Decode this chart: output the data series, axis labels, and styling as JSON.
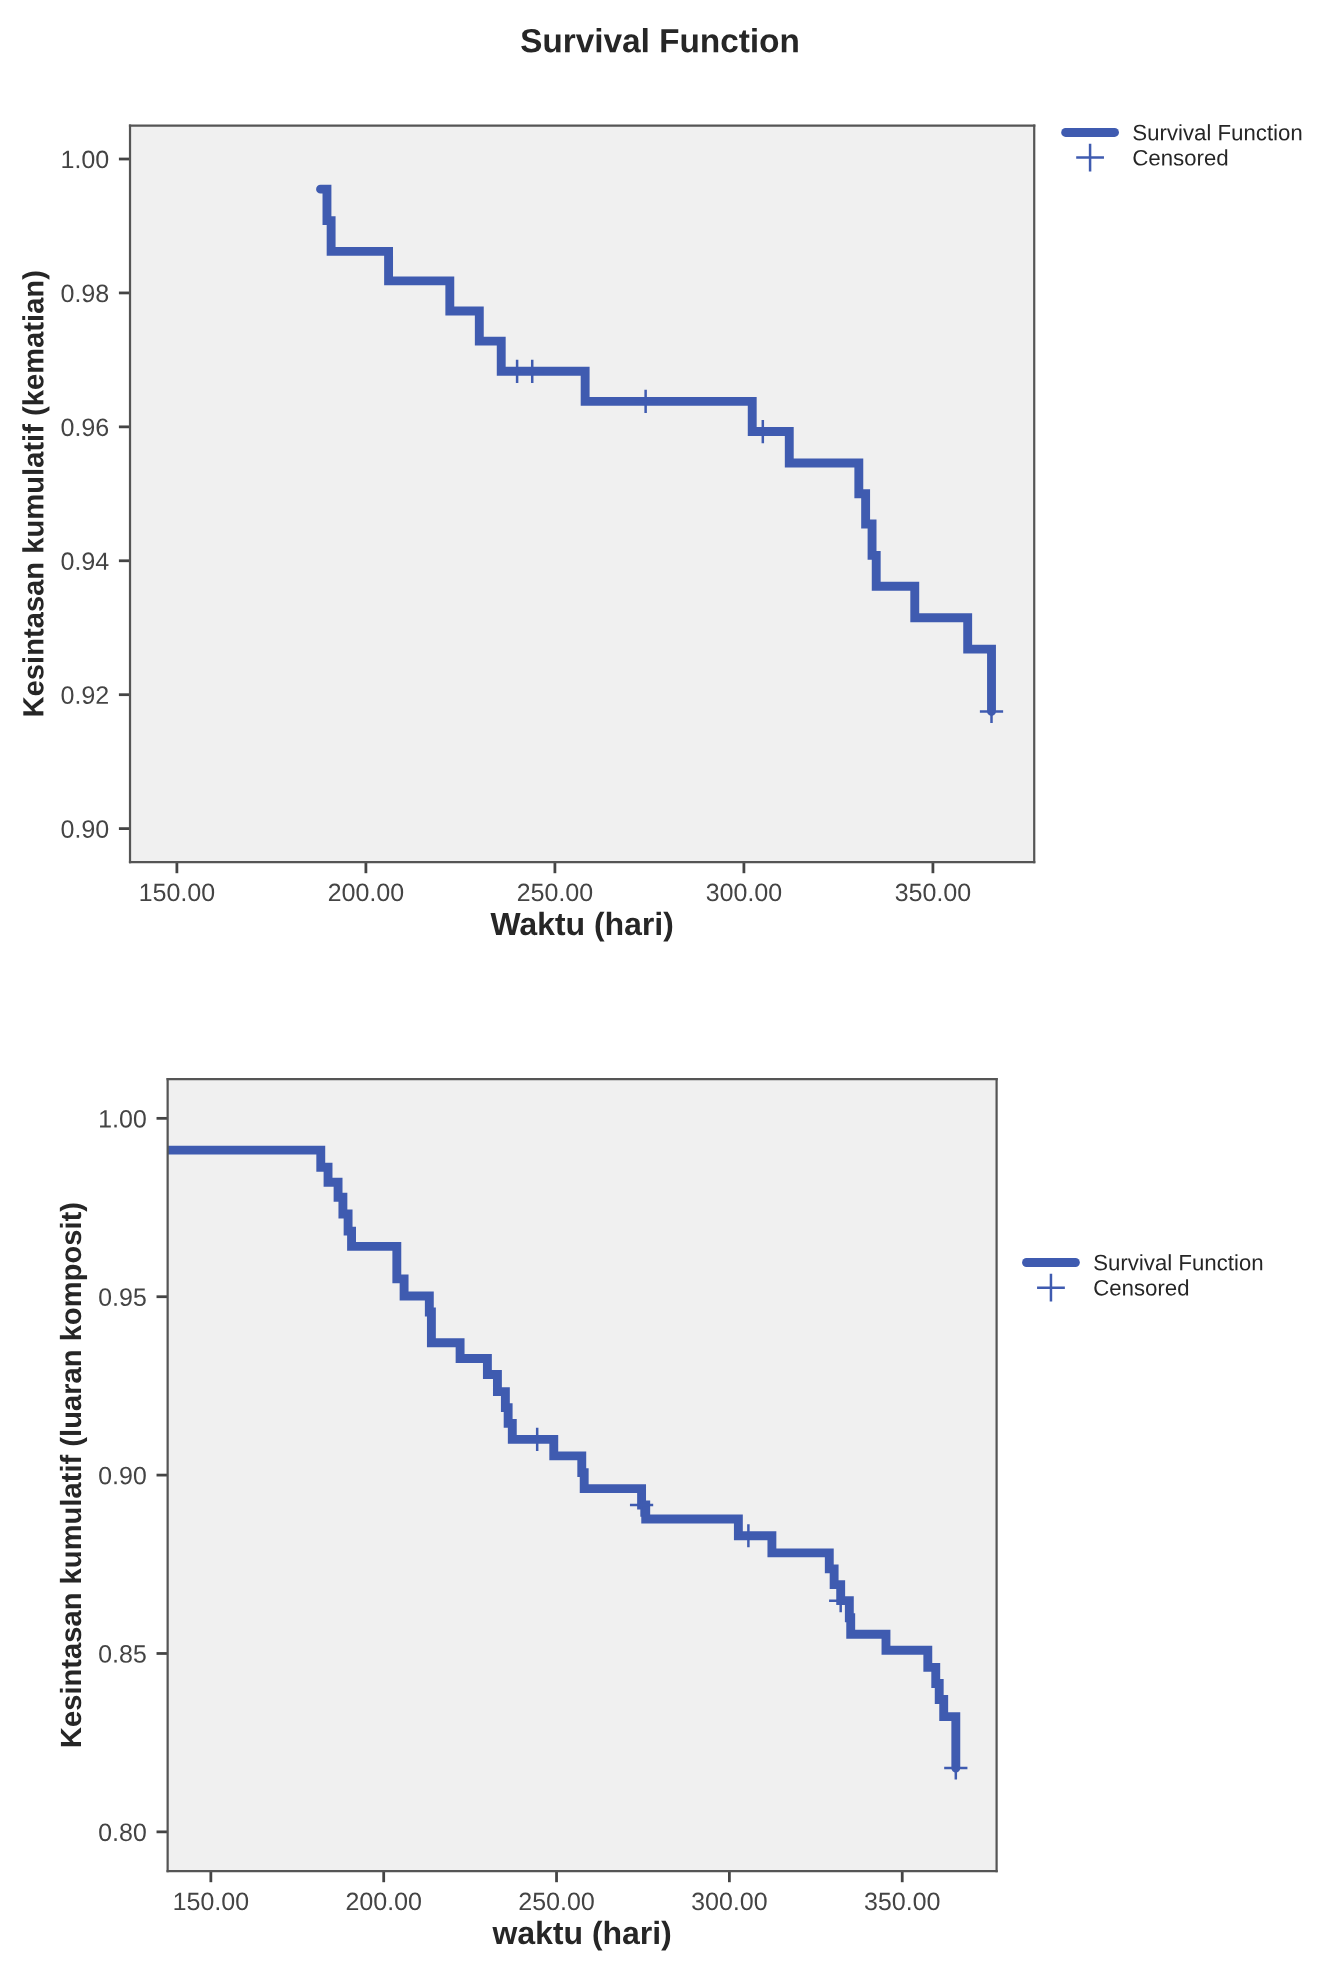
{
  "chart_data": [
    {
      "type": "step",
      "title": "Survival Function",
      "xlabel": "Waktu (hari)",
      "ylabel": "Kesintasan kumulatif (kematian)",
      "xlim": [
        137.6,
        376.8
      ],
      "ylim": [
        0.895,
        1.005
      ],
      "xticks": [
        {
          "value": 150,
          "label": "150.00"
        },
        {
          "value": 200,
          "label": "200.00"
        },
        {
          "value": 250,
          "label": "250.00"
        },
        {
          "value": 300,
          "label": "300.00"
        },
        {
          "value": 350,
          "label": "350.00"
        }
      ],
      "yticks": [
        {
          "value": 0.9,
          "label": "0.90"
        },
        {
          "value": 0.92,
          "label": "0.92"
        },
        {
          "value": 0.94,
          "label": "0.94"
        },
        {
          "value": 0.96,
          "label": "0.96"
        },
        {
          "value": 0.98,
          "label": "0.98"
        },
        {
          "value": 1.0,
          "label": "1.00"
        }
      ],
      "grid": false,
      "legend": "top right",
      "series": [
        {
          "name": "Survival Function",
          "color": "#3f5bb0",
          "x": [
            188,
            189.7,
            190.8,
            206,
            222.2,
            230,
            235.8,
            258,
            302.2,
            312,
            330.4,
            332.2,
            333.9,
            335,
            345.2,
            359.2,
            365.5
          ],
          "values": [
            0.9955,
            0.9908,
            0.9862,
            0.9818,
            0.9773,
            0.9728,
            0.9683,
            0.9638,
            0.9593,
            0.9546,
            0.95,
            0.9455,
            0.9408,
            0.9362,
            0.9315,
            0.9268,
            0.9175
          ]
        },
        {
          "name": "Censored",
          "type": "scatter",
          "marker": "cross",
          "color": "#3f5bb0",
          "x": [
            240,
            244,
            274,
            305,
            365.5
          ],
          "values": [
            0.9683,
            0.9683,
            0.9638,
            0.9593,
            0.9175
          ]
        }
      ]
    },
    {
      "type": "step",
      "xlabel": "waktu (hari)",
      "ylabel": "Kesintasan kumulatif (luaran komposit)",
      "xlim": [
        137.5,
        377.3
      ],
      "ylim": [
        0.789,
        1.011
      ],
      "xticks": [
        {
          "value": 150,
          "label": "150.00"
        },
        {
          "value": 200,
          "label": "200.00"
        },
        {
          "value": 250,
          "label": "250.00"
        },
        {
          "value": 300,
          "label": "300.00"
        },
        {
          "value": 350,
          "label": "350.00"
        }
      ],
      "yticks": [
        {
          "value": 0.8,
          "label": "0.80"
        },
        {
          "value": 0.85,
          "label": "0.85"
        },
        {
          "value": 0.9,
          "label": "0.90"
        },
        {
          "value": 0.95,
          "label": "0.95"
        },
        {
          "value": 1.0,
          "label": "1.00"
        }
      ],
      "grid": false,
      "legend": "right",
      "series": [
        {
          "name": "Survival Function",
          "color": "#3f5bb0",
          "x": [
            137.5,
            181.8,
            183.9,
            186.8,
            188.2,
            189.7,
            190.7,
            203.8,
            205.9,
            213.2,
            213.8,
            222.1,
            230,
            232.9,
            235.2,
            236,
            237.2,
            249.2,
            257.3,
            258,
            274.6,
            275.8,
            302.6,
            312.3,
            328.9,
            330.3,
            332.2,
            334.7,
            335.1,
            345.3,
            357.4,
            359.7,
            360.7,
            362,
            365.5
          ],
          "values": [
            0.9911,
            0.9863,
            0.9821,
            0.9779,
            0.9732,
            0.9684,
            0.9641,
            0.955,
            0.9502,
            0.9457,
            0.9371,
            0.9327,
            0.9282,
            0.9234,
            0.9189,
            0.9145,
            0.91,
            0.9054,
            0.9007,
            0.8962,
            0.8916,
            0.8877,
            0.883,
            0.8782,
            0.8737,
            0.8693,
            0.8648,
            0.86,
            0.8554,
            0.8509,
            0.8461,
            0.8416,
            0.8371,
            0.8323,
            0.8179
          ]
        },
        {
          "name": "Censored",
          "type": "scatter",
          "marker": "cross",
          "color": "#3f5bb0",
          "x": [
            244.4,
            274.6,
            305.5,
            332.2,
            365.5
          ],
          "values": [
            0.91,
            0.8916,
            0.883,
            0.8648,
            0.8179
          ]
        }
      ]
    }
  ]
}
